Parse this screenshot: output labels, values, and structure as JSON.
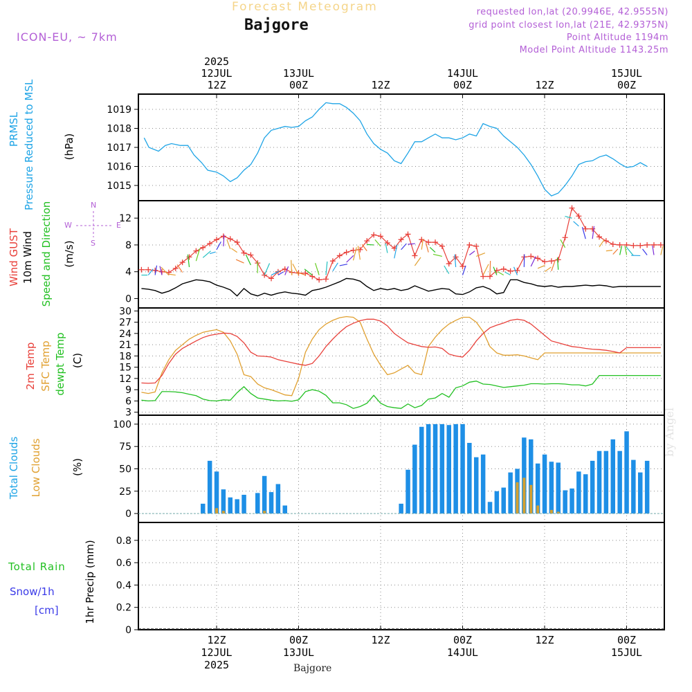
{
  "header": {
    "title": "Forecast Meteogram",
    "location": "Bajgore",
    "model": "ICON-EU, ~ 7km",
    "requested": "requested lon,lat (20.9946E, 42.9555N)",
    "grid_point": "grid point closest lon,lat (21E, 42.9375N)",
    "point_alt": "Point Altitude 1194m",
    "model_alt": "Model Point Altitude 1143.25m"
  },
  "watermark": "by Angel",
  "footer": "Bajgore",
  "colors": {
    "pressure": "#1ea4e6",
    "gust": "#e8403a",
    "wind": "#000000",
    "t2m": "#e8403a",
    "sfc": "#e0a030",
    "dewpt": "#22c022",
    "total_clouds": "#1e8fe6",
    "low_clouds": "#d4a030",
    "rain": "#22c022",
    "snow": "#3a3ae8",
    "compass": "#b35fd6"
  },
  "time_axis": {
    "top_ticks": [
      {
        "t": 0,
        "lines": [
          "2025",
          "12JUL",
          "12Z"
        ]
      },
      {
        "t": 12,
        "lines": [
          "13JUL",
          "00Z"
        ]
      },
      {
        "t": 24,
        "lines": [
          "12Z"
        ]
      },
      {
        "t": 36,
        "lines": [
          "14JUL",
          "00Z"
        ]
      },
      {
        "t": 48,
        "lines": [
          "12Z"
        ]
      },
      {
        "t": 60,
        "lines": [
          "15JUL",
          "00Z"
        ]
      }
    ],
    "bottom_ticks": [
      {
        "t": 0,
        "lines": [
          "12Z",
          "12JUL",
          "2025"
        ]
      },
      {
        "t": 12,
        "lines": [
          "00Z",
          "13JUL"
        ]
      },
      {
        "t": 24,
        "lines": [
          "12Z"
        ]
      },
      {
        "t": 36,
        "lines": [
          "00Z",
          "14JUL"
        ]
      },
      {
        "t": 48,
        "lines": [
          "12Z"
        ]
      },
      {
        "t": 60,
        "lines": [
          "00Z",
          "15JUL"
        ]
      }
    ],
    "range_hours": [
      -11,
      66
    ]
  },
  "panels": {
    "pressure": {
      "label1": "PRMSL",
      "label2": "Pressure Reduced to MSL",
      "unit": "(hPa)",
      "ticks": [
        "1015",
        "1016",
        "1017",
        "1018",
        "1019"
      ]
    },
    "wind": {
      "label_gust": "Wind GUST",
      "label_wind": "10m Wind",
      "label_dir": "Speed and Direction",
      "unit": "(m/s)",
      "ticks": [
        "0",
        "4",
        "8",
        "12"
      ],
      "compass_n": "N",
      "compass_s": "S",
      "compass_w": "W",
      "compass_e": "E"
    },
    "temp": {
      "label_t2m": "2m Temp",
      "label_sfc": "SFC Temp",
      "label_dew": "dewpt Temp",
      "unit": "(C)",
      "ticks": [
        "3",
        "6",
        "9",
        "12",
        "15",
        "18",
        "21",
        "24",
        "27",
        "30"
      ]
    },
    "clouds": {
      "label_total": "Total Clouds",
      "label_low": "Low Clouds",
      "unit": "(%)",
      "ticks": [
        "0",
        "25",
        "50",
        "75",
        "100"
      ]
    },
    "precip": {
      "label_rain": "Total  Rain",
      "label_snow": "Snow/1h",
      "label_snow_unit": "[cm]",
      "ylabel": "1hr Precip (mm)",
      "ticks": [
        "0",
        "0.2",
        "0.4",
        "0.6",
        "0.8"
      ]
    }
  },
  "chart_data": [
    {
      "type": "line",
      "title": "PRMSL Pressure Reduced to MSL",
      "ylabel": "(hPa)",
      "ylim": [
        1014.2,
        1019.8
      ],
      "x_hours": [
        -10.6,
        -9.9,
        -8.5,
        -7.5,
        -6.6,
        -5.3,
        -4.2,
        -3.3,
        -2.2,
        -1.3,
        0,
        1,
        2,
        3,
        4,
        5,
        6,
        7,
        8,
        9,
        10,
        11,
        12,
        13,
        14,
        15,
        16,
        17,
        18,
        19,
        20,
        21,
        22,
        23,
        24,
        25,
        26,
        27,
        28,
        29,
        30,
        31,
        32,
        33,
        34,
        35,
        36,
        37,
        38,
        39,
        40,
        41,
        42,
        43,
        44,
        45,
        46,
        47,
        48,
        49,
        50,
        51,
        52,
        53,
        54,
        55,
        56,
        57,
        58,
        59,
        60,
        61,
        62,
        63,
        64,
        65,
        66
      ],
      "series": [
        {
          "name": "PRMSL",
          "values": [
            1017.5,
            1017.0,
            1016.8,
            1017.1,
            1017.2,
            1017.1,
            1017.1,
            1016.6,
            1016.2,
            1015.8,
            1015.7,
            1015.5,
            1015.2,
            1015.4,
            1015.8,
            1016.1,
            1016.7,
            1017.5,
            1017.9,
            1018.0,
            1018.1,
            1018.05,
            1018.1,
            1018.4,
            1018.6,
            1019.0,
            1019.35,
            1019.3,
            1019.3,
            1019.1,
            1018.8,
            1018.4,
            1017.7,
            1017.2,
            1016.9,
            1016.7,
            1016.3,
            1016.15,
            1016.7,
            1017.3,
            1017.3,
            1017.5,
            1017.7,
            1017.5,
            1017.5,
            1017.4,
            1017.5,
            1017.7,
            1017.6,
            1018.25,
            1018.1,
            1018.0,
            1017.6,
            1017.3,
            1017.0,
            1016.6,
            1016.1,
            1015.5,
            1014.8,
            1014.45,
            1014.6,
            1015.0,
            1015.5,
            1016.1,
            1016.25,
            1016.3,
            1016.5,
            1016.6,
            1016.4,
            1016.15,
            1015.95,
            1016.0,
            1016.2,
            1016.0
          ]
        }
      ]
    },
    {
      "type": "line",
      "title": "Wind GUST / 10m Wind Speed and Direction",
      "ylabel": "(m/s)",
      "ylim": [
        -1.4,
        14.6
      ],
      "x_hours": [
        -11,
        -10,
        -9,
        -8,
        -7,
        -6,
        -5,
        -4,
        -3,
        -2,
        -1,
        0,
        1,
        2,
        3,
        4,
        5,
        6,
        7,
        8,
        9,
        10,
        11,
        12,
        13,
        14,
        15,
        16,
        17,
        18,
        19,
        20,
        21,
        22,
        23,
        24,
        25,
        26,
        27,
        28,
        29,
        30,
        31,
        32,
        33,
        34,
        35,
        36,
        37,
        38,
        39,
        40,
        41,
        42,
        43,
        44,
        45,
        46,
        47,
        48,
        49,
        50,
        51,
        52,
        53,
        54,
        55,
        56,
        57,
        58,
        59,
        60,
        61,
        62,
        63,
        64,
        65,
        66
      ],
      "series": [
        {
          "name": "Wind GUST",
          "values": [
            4.3,
            4.3,
            4.2,
            4.0,
            3.9,
            4.5,
            5.4,
            6.2,
            7.1,
            7.6,
            8.2,
            8.8,
            9.3,
            8.9,
            8.4,
            6.8,
            6.5,
            5.3,
            3.5,
            3.0,
            4.0,
            4.4,
            3.9,
            3.8,
            3.8,
            3.3,
            2.8,
            2.9,
            5.6,
            6.4,
            6.9,
            7.2,
            7.3,
            8.6,
            9.5,
            9.3,
            8.3,
            7.5,
            8.8,
            9.6,
            6.4,
            8.8,
            8.4,
            8.4,
            7.8,
            5.2,
            6.2,
            4.8,
            8.0,
            7.8,
            3.3,
            3.3,
            4.2,
            4.4,
            4.1,
            4.2,
            6.2,
            6.3,
            6.0,
            5.5,
            5.6,
            5.8,
            9.1,
            13.5,
            12.3,
            10.4,
            10.4,
            9.2,
            8.6,
            8.1,
            8.0,
            8.0,
            7.9,
            7.9,
            8.0,
            8.0,
            8.0,
            8.0
          ]
        },
        {
          "name": "10m Wind",
          "values": [
            1.5,
            1.4,
            1.2,
            0.8,
            1.1,
            1.6,
            2.2,
            2.5,
            2.8,
            2.7,
            2.5,
            2.0,
            1.7,
            1.3,
            0.4,
            1.5,
            0.7,
            0.4,
            0.8,
            0.5,
            0.8,
            1.0,
            0.8,
            0.7,
            0.5,
            1.2,
            1.4,
            1.7,
            2.1,
            2.5,
            3.0,
            2.9,
            2.6,
            1.8,
            1.2,
            1.5,
            1.3,
            1.5,
            1.2,
            1.4,
            1.9,
            1.5,
            1.1,
            1.3,
            1.5,
            1.4,
            0.7,
            0.6,
            1.0,
            1.6,
            1.8,
            1.4,
            0.7,
            0.9,
            2.8,
            2.8,
            2.4,
            2.2,
            1.9,
            1.8,
            1.9,
            1.7,
            1.8,
            1.8,
            1.9,
            2.0,
            1.9,
            2.0,
            1.9,
            1.7,
            1.8,
            1.8,
            1.8,
            1.8,
            1.8,
            1.8,
            1.8,
            1.8
          ]
        }
      ]
    },
    {
      "type": "line",
      "title": "2m Temp / SFC Temp / dewpt Temp",
      "ylabel": "(C)",
      "ylim": [
        2.2,
        30.8
      ],
      "x_hours": [
        -11,
        -10,
        -9,
        -8,
        -7,
        -6,
        -5,
        -4,
        -3,
        -2,
        -1,
        0,
        1,
        2,
        3,
        4,
        5,
        6,
        7,
        8,
        9,
        10,
        11,
        12,
        13,
        14,
        15,
        16,
        17,
        18,
        19,
        20,
        21,
        22,
        23,
        24,
        25,
        26,
        27,
        28,
        29,
        30,
        31,
        32,
        33,
        34,
        35,
        36,
        37,
        38,
        39,
        40,
        41,
        42,
        43,
        44,
        45,
        46,
        47,
        48,
        49,
        50,
        51,
        52,
        53,
        54,
        55,
        56,
        57,
        58,
        59,
        60,
        61,
        62,
        63,
        64,
        65,
        66
      ],
      "series": [
        {
          "name": "2m Temp",
          "values": [
            10.8,
            10.7,
            10.8,
            12.8,
            16.0,
            18.5,
            20.0,
            21.0,
            22.0,
            22.9,
            23.5,
            23.8,
            24.1,
            24.0,
            23.2,
            21.5,
            19.0,
            18.0,
            17.9,
            17.7,
            17.0,
            16.6,
            16.2,
            15.8,
            15.5,
            16.0,
            18.0,
            20.5,
            22.5,
            24.3,
            25.8,
            26.7,
            27.4,
            27.8,
            27.8,
            27.3,
            26.0,
            24.0,
            22.7,
            21.5,
            21.0,
            20.5,
            20.3,
            20.4,
            20.0,
            18.5,
            18.0,
            17.7,
            19.5,
            22.0,
            24.0,
            25.5,
            26.2,
            26.8,
            27.5,
            27.8,
            27.5,
            26.5,
            25.0,
            23.5,
            22.0,
            21.5,
            21.0,
            20.5,
            20.3,
            20.0,
            19.8,
            19.7,
            19.5,
            19.2,
            18.8,
            20.2,
            20.2,
            20.2,
            20.2,
            20.2,
            20.2,
            20.2
          ]
        },
        {
          "name": "SFC Temp",
          "values": [
            8.3,
            8.0,
            8.4,
            13.5,
            17.0,
            19.5,
            21.0,
            22.5,
            23.5,
            24.3,
            24.7,
            25.0,
            24.3,
            22.0,
            18.5,
            13.0,
            12.5,
            10.5,
            9.5,
            9.0,
            8.3,
            7.6,
            7.4,
            12.0,
            19.0,
            22.5,
            25.0,
            26.5,
            27.5,
            28.2,
            28.5,
            28.3,
            27.0,
            22.5,
            18.5,
            15.5,
            13.0,
            13.5,
            14.5,
            15.5,
            13.5,
            13.0,
            20.5,
            23.0,
            25.0,
            26.5,
            27.5,
            28.3,
            28.3,
            27.0,
            24.5,
            20.5,
            18.8,
            18.2,
            18.2,
            18.3,
            18.0,
            17.5,
            17.0,
            18.8,
            18.8,
            18.8,
            18.8,
            18.8,
            18.8,
            18.8,
            18.8,
            18.8,
            18.8,
            18.8,
            18.8,
            18.8,
            18.8,
            18.8,
            18.8,
            18.8,
            18.8,
            18.8
          ]
        },
        {
          "name": "dewpt Temp",
          "values": [
            6.2,
            6.0,
            6.1,
            8.5,
            8.5,
            8.4,
            8.2,
            7.8,
            7.4,
            6.5,
            6.1,
            6.0,
            6.3,
            6.2,
            8.2,
            9.8,
            8.0,
            6.8,
            6.5,
            6.2,
            6.0,
            6.1,
            5.9,
            6.3,
            8.5,
            9.0,
            8.6,
            7.5,
            5.5,
            5.5,
            5.0,
            4.0,
            4.5,
            5.4,
            7.5,
            5.4,
            4.5,
            4.2,
            4.0,
            5.2,
            4.2,
            4.8,
            6.5,
            6.8,
            8.0,
            7.0,
            9.5,
            10.0,
            11.0,
            11.3,
            10.5,
            10.4,
            10.0,
            9.6,
            9.8,
            10.0,
            10.2,
            10.6,
            10.6,
            10.5,
            10.6,
            10.6,
            10.5,
            10.3,
            10.3,
            10.0,
            10.5,
            12.8,
            12.8,
            12.8,
            12.8,
            12.8,
            12.8,
            12.8,
            12.8,
            12.8,
            12.8,
            12.8
          ]
        }
      ]
    },
    {
      "type": "bar",
      "title": "Total Clouds / Low Clouds",
      "ylabel": "(%)",
      "ylim": [
        -10,
        110
      ],
      "x_hours": [
        -2,
        -1,
        0,
        1,
        2,
        3,
        4,
        5,
        6,
        7,
        8,
        9,
        10,
        27,
        28,
        29,
        30,
        31,
        32,
        33,
        34,
        35,
        36,
        37,
        38,
        39,
        40,
        41,
        42,
        43,
        44,
        45,
        46,
        47,
        48,
        49,
        50,
        51,
        52,
        53,
        54,
        55,
        56,
        57,
        58,
        59,
        60,
        61,
        62,
        63,
        64,
        65,
        66
      ],
      "series": [
        {
          "name": "Total Clouds",
          "values": [
            11,
            59,
            47,
            27,
            18,
            16,
            21,
            0,
            23,
            42,
            24,
            33,
            9,
            11,
            49,
            77,
            97,
            100,
            100,
            100,
            99,
            100,
            100,
            79,
            63,
            66,
            13,
            25,
            29,
            46,
            50,
            85,
            83,
            56,
            66,
            58,
            57,
            26,
            28,
            47,
            44,
            59,
            70,
            70,
            83,
            70,
            92,
            60,
            46,
            59,
            0,
            0,
            0
          ]
        },
        {
          "name": "Low Clouds",
          "values": [
            0,
            0,
            6,
            3,
            0,
            0,
            0,
            0,
            0,
            3,
            0,
            0,
            0,
            0,
            0,
            0,
            0,
            0,
            0,
            0,
            0,
            0,
            0,
            0,
            0,
            0,
            0,
            0,
            0,
            0,
            35,
            40,
            32,
            9,
            0,
            4,
            2,
            0,
            0,
            0,
            0,
            0,
            0,
            0,
            0,
            0,
            0,
            0,
            0,
            0,
            0,
            0,
            0
          ]
        }
      ]
    },
    {
      "type": "line",
      "title": "1hr Precip",
      "ylabel": "1hr Precip (mm)",
      "ylim": [
        0,
        0.96
      ],
      "series": [
        {
          "name": "Total Rain",
          "values": []
        }
      ]
    }
  ]
}
